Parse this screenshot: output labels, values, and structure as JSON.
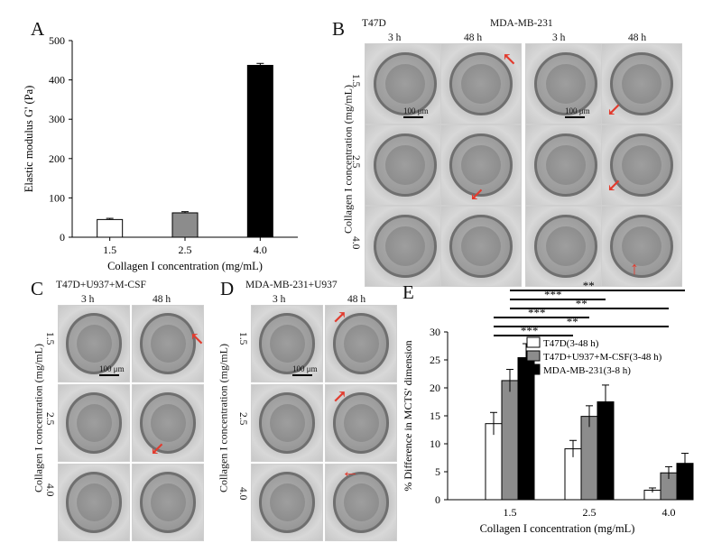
{
  "panels": {
    "A": "A",
    "B": "B",
    "C": "C",
    "D": "D",
    "E": "E"
  },
  "micrographs": {
    "B": {
      "group_left": "T47D",
      "group_right": "MDA-MB-231",
      "times": [
        "3 h",
        "48 h",
        "3 h",
        "48 h"
      ],
      "row_axis_label": "Collagen I concentration (mg/mL)",
      "rows": [
        "1.5",
        "2.5",
        "4.0"
      ],
      "scale": "100 μm"
    },
    "C": {
      "group": "T47D+U937+M-CSF",
      "times": [
        "3 h",
        "48 h"
      ],
      "row_axis_label": "Collagen I concentration (mg/mL)",
      "rows": [
        "1.5",
        "2.5",
        "4.0"
      ],
      "scale": "100 μm"
    },
    "D": {
      "group": "MDA-MB-231+U937",
      "times": [
        "3 h",
        "48 h"
      ],
      "row_axis_label": "Collagen I concentration (mg/mL)",
      "rows": [
        "1.5",
        "2.5",
        "4.0"
      ],
      "scale": "100 μm"
    }
  },
  "chart_data": [
    {
      "panel": "A",
      "type": "bar",
      "categories": [
        "1.5",
        "2.5",
        "4.0"
      ],
      "values": [
        45,
        62,
        437
      ],
      "errors": [
        3,
        3,
        5
      ],
      "bar_colors": [
        "#ffffff",
        "#8c8c8c",
        "#000000"
      ],
      "xlabel": "Collagen I concentration (mg/mL)",
      "ylabel": "Elastic modulus G' (Pa)",
      "ylim": [
        0,
        500
      ],
      "yticks": [
        0,
        100,
        200,
        300,
        400,
        500
      ]
    },
    {
      "panel": "E",
      "type": "bar",
      "categories": [
        "1.5",
        "2.5",
        "4.0"
      ],
      "series": [
        {
          "name": "T47D(3-48 h)",
          "color": "#ffffff",
          "values": [
            13.6,
            9.1,
            1.7
          ],
          "errors": [
            2.0,
            1.5,
            0.4
          ]
        },
        {
          "name": "T47D+U937+M-CSF(3-48 h)",
          "color": "#8c8c8c",
          "values": [
            21.3,
            14.9,
            4.8
          ],
          "errors": [
            2.0,
            1.9,
            1.1
          ]
        },
        {
          "name": "MDA-MB-231(3-8 h)",
          "color": "#000000",
          "values": [
            25.4,
            17.5,
            6.5
          ],
          "errors": [
            2.5,
            3.0,
            1.8
          ]
        }
      ],
      "xlabel": "Collagen I concentration (mg/mL)",
      "ylabel": "% Difference in MCTS' dimension",
      "ylim": [
        0,
        30
      ],
      "yticks": [
        0,
        5,
        10,
        15,
        20,
        25,
        30
      ],
      "significance": [
        "**",
        "***",
        "**",
        "***",
        "**",
        "***"
      ],
      "legend_position": "right"
    }
  ]
}
